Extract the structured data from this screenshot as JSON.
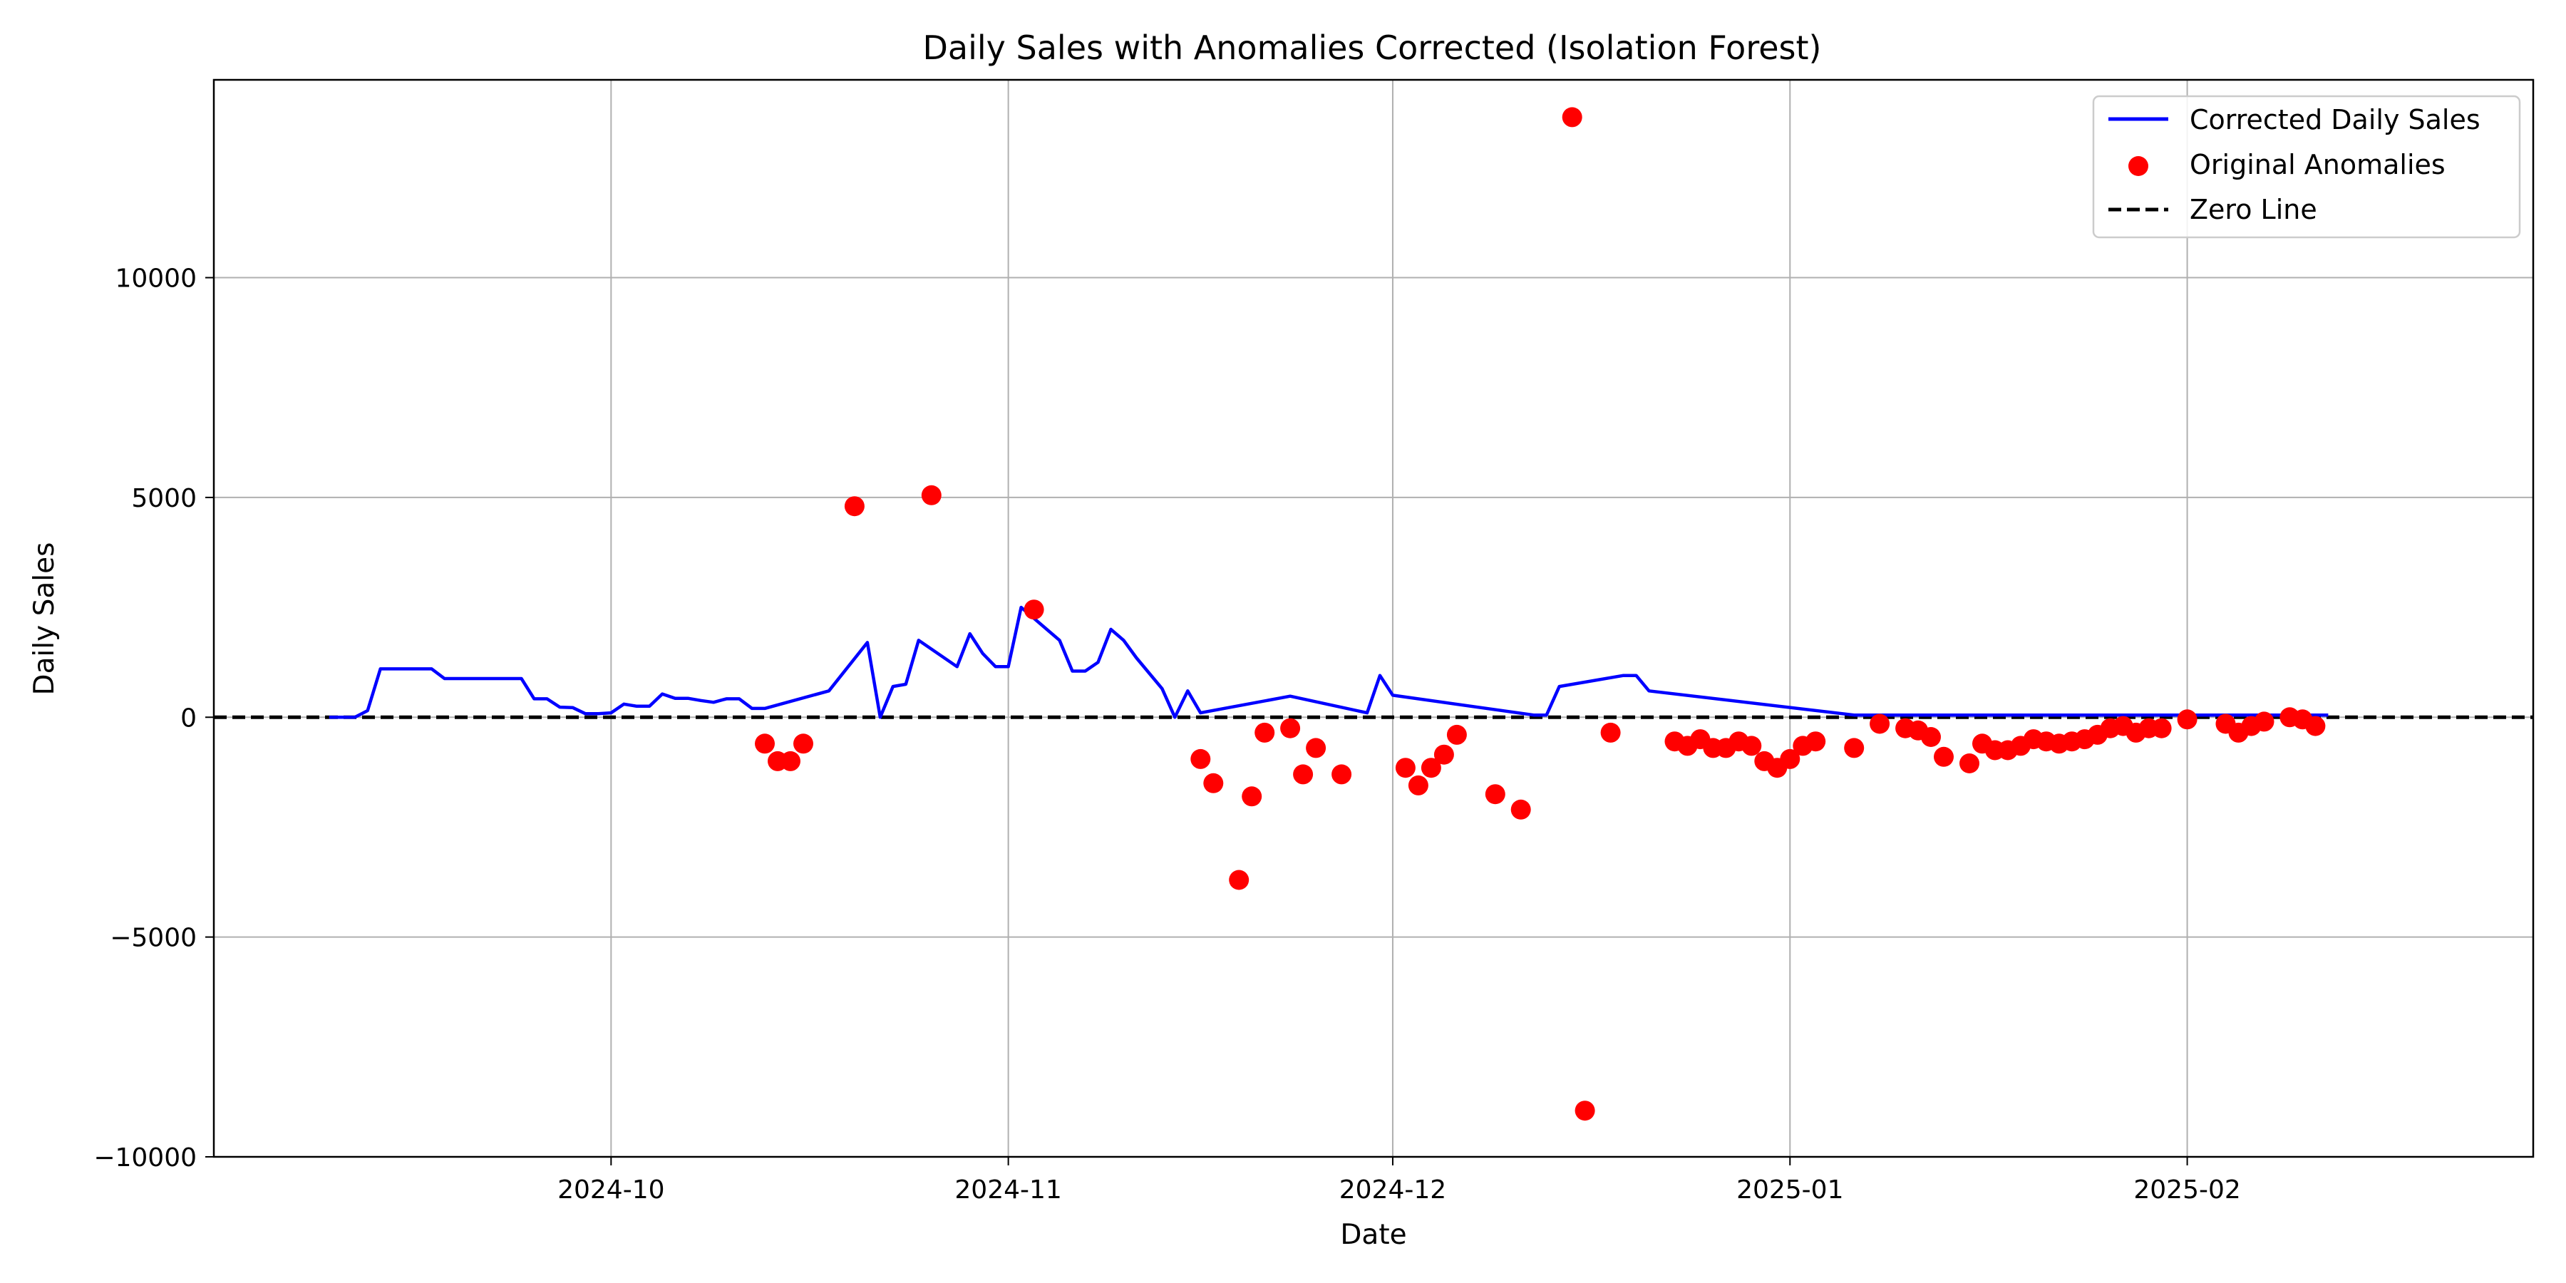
{
  "chart_data": {
    "type": "line",
    "title": "Daily Sales with Anomalies Corrected (Isolation Forest)",
    "xlabel": "Date",
    "ylabel": "Daily Sales",
    "x_range": [
      "2024-08-31",
      "2025-02-28"
    ],
    "ylim": [
      -10000,
      14500
    ],
    "x_ticks": [
      {
        "date": "2024-10-01",
        "label": "2024-10"
      },
      {
        "date": "2024-11-01",
        "label": "2024-11"
      },
      {
        "date": "2024-12-01",
        "label": "2024-12"
      },
      {
        "date": "2025-01-01",
        "label": "2025-01"
      },
      {
        "date": "2025-02-01",
        "label": "2025-02"
      }
    ],
    "y_ticks": [
      {
        "value": 10000,
        "label": "10000"
      },
      {
        "value": 5000,
        "label": "5000"
      },
      {
        "value": 0,
        "label": "0"
      },
      {
        "value": -5000,
        "label": "−5000"
      },
      {
        "value": -10000,
        "label": "−10000"
      }
    ],
    "grid": true,
    "legend_position": "top-right",
    "series": [
      {
        "name": "Corrected Daily Sales",
        "kind": "line",
        "color": "#0000ff",
        "points": [
          [
            "2024-09-09",
            0
          ],
          [
            "2024-09-11",
            0
          ],
          [
            "2024-09-12",
            150
          ],
          [
            "2024-09-13",
            1100
          ],
          [
            "2024-09-17",
            1100
          ],
          [
            "2024-09-18",
            880
          ],
          [
            "2024-09-24",
            880
          ],
          [
            "2024-09-25",
            420
          ],
          [
            "2024-09-26",
            420
          ],
          [
            "2024-09-27",
            230
          ],
          [
            "2024-09-28",
            220
          ],
          [
            "2024-09-29",
            80
          ],
          [
            "2024-09-30",
            80
          ],
          [
            "2024-10-01",
            100
          ],
          [
            "2024-10-02",
            300
          ],
          [
            "2024-10-03",
            250
          ],
          [
            "2024-10-04",
            250
          ],
          [
            "2024-10-05",
            530
          ],
          [
            "2024-10-06",
            430
          ],
          [
            "2024-10-07",
            430
          ],
          [
            "2024-10-08",
            380
          ],
          [
            "2024-10-09",
            340
          ],
          [
            "2024-10-10",
            420
          ],
          [
            "2024-10-11",
            420
          ],
          [
            "2024-10-12",
            200
          ],
          [
            "2024-10-13",
            200
          ],
          [
            "2024-10-18",
            600
          ],
          [
            "2024-10-21",
            1700
          ],
          [
            "2024-10-22",
            0
          ],
          [
            "2024-10-23",
            700
          ],
          [
            "2024-10-24",
            750
          ],
          [
            "2024-10-25",
            1750
          ],
          [
            "2024-10-28",
            1150
          ],
          [
            "2024-10-29",
            1900
          ],
          [
            "2024-10-30",
            1450
          ],
          [
            "2024-10-31",
            1150
          ],
          [
            "2024-11-01",
            1150
          ],
          [
            "2024-11-02",
            2500
          ],
          [
            "2024-11-05",
            1750
          ],
          [
            "2024-11-06",
            1050
          ],
          [
            "2024-11-07",
            1050
          ],
          [
            "2024-11-08",
            1250
          ],
          [
            "2024-11-09",
            2000
          ],
          [
            "2024-11-10",
            1750
          ],
          [
            "2024-11-11",
            1350
          ],
          [
            "2024-11-13",
            650
          ],
          [
            "2024-11-14",
            0
          ],
          [
            "2024-11-15",
            600
          ],
          [
            "2024-11-16",
            100
          ],
          [
            "2024-11-23",
            480
          ],
          [
            "2024-11-29",
            100
          ],
          [
            "2024-11-30",
            950
          ],
          [
            "2024-12-01",
            500
          ],
          [
            "2024-12-12",
            50
          ],
          [
            "2024-12-13",
            50
          ],
          [
            "2024-12-14",
            700
          ],
          [
            "2024-12-19",
            950
          ],
          [
            "2024-12-20",
            950
          ],
          [
            "2024-12-21",
            600
          ],
          [
            "2025-01-06",
            50
          ],
          [
            "2025-02-12",
            50
          ]
        ]
      },
      {
        "name": "Original Anomalies",
        "kind": "scatter",
        "color": "#ff0000",
        "points": [
          [
            "2024-10-13",
            -600
          ],
          [
            "2024-10-14",
            -1000
          ],
          [
            "2024-10-15",
            -1000
          ],
          [
            "2024-10-16",
            -600
          ],
          [
            "2024-10-20",
            4800
          ],
          [
            "2024-10-26",
            5050
          ],
          [
            "2024-11-03",
            2450
          ],
          [
            "2024-11-16",
            -950
          ],
          [
            "2024-11-17",
            -1500
          ],
          [
            "2024-11-19",
            -3700
          ],
          [
            "2024-11-20",
            -1800
          ],
          [
            "2024-11-21",
            -350
          ],
          [
            "2024-11-23",
            -250
          ],
          [
            "2024-11-24",
            -1300
          ],
          [
            "2024-11-25",
            -700
          ],
          [
            "2024-11-27",
            -1300
          ],
          [
            "2024-12-02",
            -1150
          ],
          [
            "2024-12-03",
            -1550
          ],
          [
            "2024-12-04",
            -1150
          ],
          [
            "2024-12-05",
            -850
          ],
          [
            "2024-12-06",
            -400
          ],
          [
            "2024-12-09",
            -1750
          ],
          [
            "2024-12-11",
            -2100
          ],
          [
            "2024-12-15",
            13650
          ],
          [
            "2024-12-16",
            -8950
          ],
          [
            "2024-12-18",
            -350
          ],
          [
            "2024-12-23",
            -550
          ],
          [
            "2024-12-24",
            -650
          ],
          [
            "2024-12-25",
            -500
          ],
          [
            "2024-12-26",
            -700
          ],
          [
            "2024-12-27",
            -700
          ],
          [
            "2024-12-28",
            -550
          ],
          [
            "2024-12-29",
            -650
          ],
          [
            "2024-12-30",
            -1000
          ],
          [
            "2024-12-31",
            -1150
          ],
          [
            "2025-01-01",
            -950
          ],
          [
            "2025-01-02",
            -650
          ],
          [
            "2025-01-03",
            -550
          ],
          [
            "2025-01-06",
            -700
          ],
          [
            "2025-01-08",
            -150
          ],
          [
            "2025-01-10",
            -250
          ],
          [
            "2025-01-11",
            -300
          ],
          [
            "2025-01-12",
            -450
          ],
          [
            "2025-01-13",
            -900
          ],
          [
            "2025-01-15",
            -1050
          ],
          [
            "2025-01-16",
            -600
          ],
          [
            "2025-01-17",
            -750
          ],
          [
            "2025-01-18",
            -750
          ],
          [
            "2025-01-19",
            -650
          ],
          [
            "2025-01-20",
            -500
          ],
          [
            "2025-01-21",
            -550
          ],
          [
            "2025-01-22",
            -600
          ],
          [
            "2025-01-23",
            -550
          ],
          [
            "2025-01-24",
            -500
          ],
          [
            "2025-01-25",
            -400
          ],
          [
            "2025-01-26",
            -250
          ],
          [
            "2025-01-27",
            -200
          ],
          [
            "2025-01-28",
            -350
          ],
          [
            "2025-01-29",
            -250
          ],
          [
            "2025-01-30",
            -250
          ],
          [
            "2025-02-01",
            -50
          ],
          [
            "2025-02-04",
            -150
          ],
          [
            "2025-02-05",
            -350
          ],
          [
            "2025-02-06",
            -200
          ],
          [
            "2025-02-07",
            -100
          ],
          [
            "2025-02-09",
            0
          ],
          [
            "2025-02-10",
            -50
          ],
          [
            "2025-02-11",
            -200
          ]
        ]
      },
      {
        "name": "Zero Line",
        "kind": "hline",
        "color": "#000000",
        "y": 0
      }
    ]
  }
}
